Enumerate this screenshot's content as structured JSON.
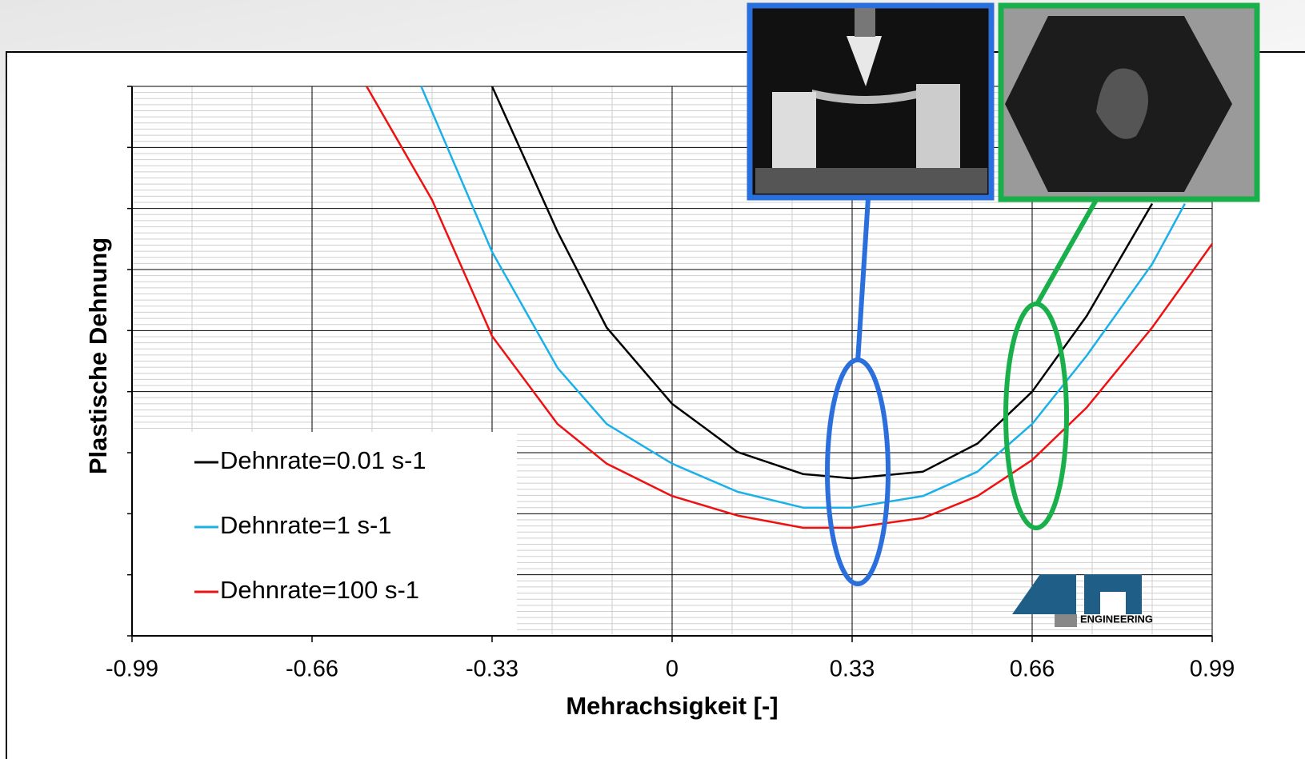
{
  "chart_data": {
    "type": "line",
    "x_label": "Mehrachsigkeit [-]",
    "y_label": "Plastische Dehnung",
    "xlim": [
      -0.99,
      0.99
    ],
    "xticks": [
      -0.99,
      -0.66,
      -0.33,
      0,
      0.33,
      0.66,
      0.99
    ],
    "ylim": [
      0,
      9
    ],
    "yticks": [
      0,
      1,
      2,
      3,
      4,
      5,
      6,
      7,
      8,
      9
    ],
    "grid": true,
    "minor_grid": {
      "x": 3,
      "y": 10
    },
    "legend": "lower-left",
    "logo_text": "ENGINEERING",
    "series": [
      {
        "name": "Dehnrate=0.01 s-1",
        "color": "#000000",
        "x": [
          -0.33,
          -0.21,
          -0.12,
          0,
          0.12,
          0.24,
          0.33,
          0.46,
          0.56,
          0.66,
          0.76,
          0.88
        ],
        "values": [
          9.0,
          6.62,
          5.05,
          3.8,
          3.01,
          2.65,
          2.58,
          2.69,
          3.15,
          4.0,
          5.24,
          7.08
        ]
      },
      {
        "name": "Dehnrate=1 s-1",
        "color": "#1ab0e8",
        "x": [
          -0.46,
          -0.33,
          -0.21,
          -0.12,
          0,
          0.12,
          0.24,
          0.33,
          0.46,
          0.56,
          0.66,
          0.76,
          0.88,
          0.94
        ],
        "values": [
          9.0,
          6.29,
          4.39,
          3.47,
          2.82,
          2.36,
          2.1,
          2.1,
          2.29,
          2.69,
          3.47,
          4.59,
          6.09,
          7.08
        ]
      },
      {
        "name": "Dehnrate=100 s-1",
        "color": "#ee1111",
        "x": [
          -0.56,
          -0.44,
          -0.33,
          -0.21,
          -0.12,
          0,
          0.12,
          0.24,
          0.33,
          0.46,
          0.56,
          0.66,
          0.76,
          0.88,
          0.99
        ],
        "values": [
          9.0,
          7.14,
          4.91,
          3.47,
          2.82,
          2.29,
          1.97,
          1.77,
          1.77,
          1.93,
          2.29,
          2.88,
          3.74,
          5.05,
          6.42
        ]
      }
    ]
  }
}
